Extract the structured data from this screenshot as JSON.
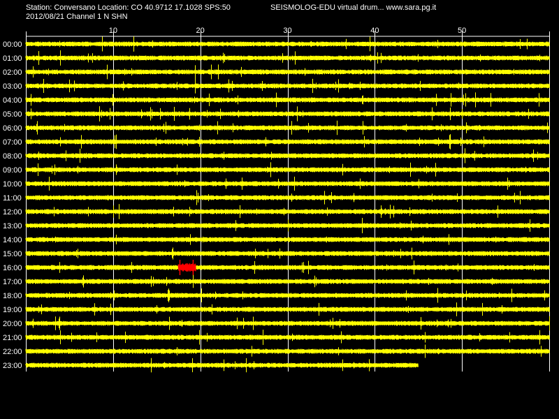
{
  "header": {
    "station_line": "Station: Conversano Location: CO 40.9712 17.1028 SPS:50",
    "product_line": "SEISMOLOG-EDU virtual drum... www.sara.pg.it",
    "date_channel_line": "2012/08/21  Channel 1 N SHN"
  },
  "drum": {
    "minute_ticks": [
      "10",
      "20",
      "30",
      "40",
      "50"
    ],
    "hour_labels": [
      "00:00",
      "01:00",
      "02:00",
      "03:00",
      "04:00",
      "05:00",
      "06:00",
      "07:00",
      "08:00",
      "09:00",
      "10:00",
      "11:00",
      "12:00",
      "13:00",
      "14:00",
      "15:00",
      "16:00",
      "17:00",
      "18:00",
      "19:00",
      "20:00",
      "21:00",
      "22:00",
      "23:00"
    ],
    "last_row_minutes": 45,
    "event": {
      "hour": "16:00",
      "start_minute": 17.5,
      "end_minute": 19.5
    }
  },
  "colors": {
    "background": "#000000",
    "trace": "#ffff00",
    "event_trace": "#ff0000",
    "grid": "#ffffff",
    "text": "#ffffff"
  }
}
